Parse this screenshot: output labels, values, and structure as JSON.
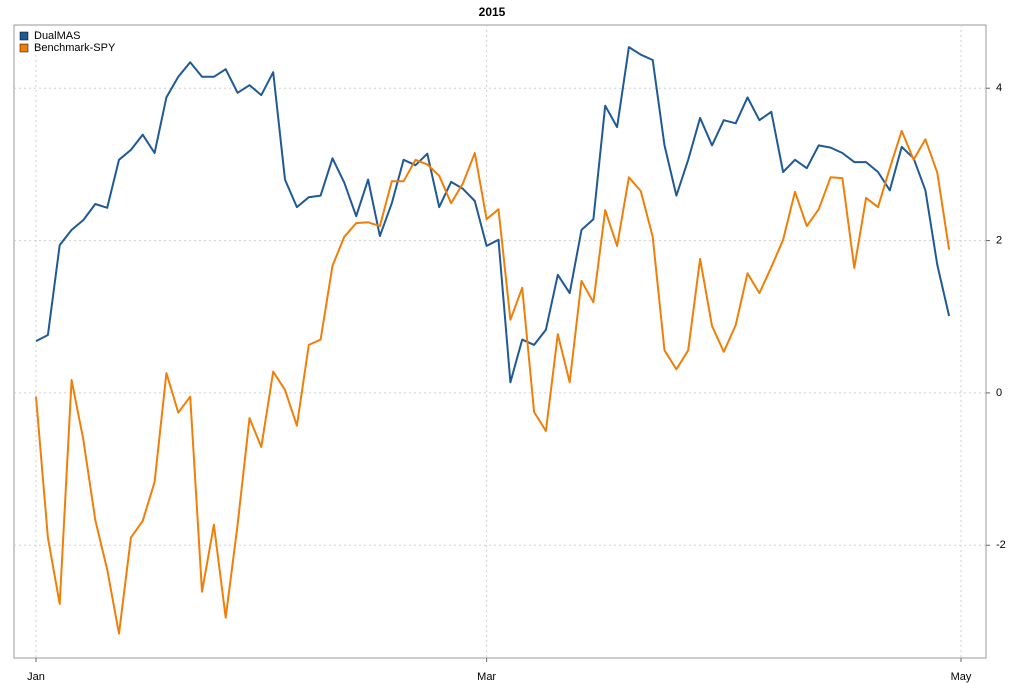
{
  "chart_data": {
    "type": "line",
    "title": "2015",
    "categories": [
      "Jan",
      null,
      null,
      null,
      null,
      null,
      null,
      null,
      null,
      null,
      null,
      null,
      null,
      null,
      null,
      null,
      null,
      null,
      null,
      null,
      null,
      null,
      null,
      null,
      null,
      null,
      null,
      null,
      null,
      null,
      null,
      null,
      null,
      null,
      null,
      null,
      null,
      null,
      "Mar",
      null,
      null,
      null,
      null,
      null,
      null,
      null,
      null,
      null,
      null,
      null,
      null,
      null,
      null,
      null,
      null,
      null,
      null,
      null,
      null,
      null,
      null,
      null,
      null,
      null,
      null,
      null,
      null,
      null,
      null,
      null,
      null,
      null,
      null,
      null,
      null,
      null,
      null,
      null,
      "May"
    ],
    "series": [
      {
        "name": "DualMAS",
        "color": "#1f5a96",
        "values": [
          0.68,
          0.76,
          1.94,
          2.14,
          2.27,
          2.48,
          2.43,
          3.06,
          3.19,
          3.39,
          3.15,
          3.88,
          4.15,
          4.34,
          4.15,
          4.15,
          4.25,
          3.94,
          4.04,
          3.91,
          4.21,
          2.8,
          2.44,
          2.57,
          2.59,
          3.08,
          2.76,
          2.32,
          2.8,
          2.06,
          2.49,
          3.06,
          2.99,
          3.14,
          2.44,
          2.77,
          2.68,
          2.52,
          1.93,
          2.01,
          0.14,
          0.7,
          0.63,
          0.83,
          1.55,
          1.31,
          2.14,
          2.28,
          3.77,
          3.49,
          4.54,
          4.44,
          4.37,
          3.25,
          2.59,
          3.06,
          3.61,
          3.25,
          3.58,
          3.54,
          3.88,
          3.58,
          3.69,
          2.9,
          3.06,
          2.95,
          3.25,
          3.22,
          3.15,
          3.03,
          3.03,
          2.9,
          2.66,
          3.23,
          3.08,
          2.66,
          1.68,
          1.01,
          null
        ]
      },
      {
        "name": "Benchmark-SPY",
        "color": "#f07f09",
        "values": [
          -0.05,
          -1.9,
          -2.77,
          0.17,
          -0.62,
          -1.67,
          -2.32,
          -3.16,
          -1.9,
          -1.68,
          -1.17,
          0.26,
          -0.26,
          -0.05,
          -2.61,
          -1.73,
          -2.95,
          -1.73,
          -0.33,
          -0.71,
          0.28,
          0.04,
          -0.43,
          0.63,
          0.7,
          1.67,
          2.05,
          2.23,
          2.24,
          2.19,
          2.78,
          2.78,
          3.06,
          3.0,
          2.85,
          2.49,
          2.75,
          3.15,
          2.28,
          2.41,
          0.96,
          1.38,
          -0.25,
          -0.5,
          0.77,
          0.14,
          1.47,
          1.19,
          2.4,
          1.93,
          2.83,
          2.65,
          2.05,
          0.56,
          0.31,
          0.56,
          1.76,
          0.88,
          0.54,
          0.89,
          1.57,
          1.31,
          1.65,
          2.01,
          2.64,
          2.19,
          2.41,
          2.83,
          2.82,
          1.64,
          2.56,
          2.44,
          2.95,
          3.44,
          3.06,
          3.33,
          2.89,
          1.88,
          null
        ]
      }
    ],
    "ylim": [
      -3.48,
      4.83
    ],
    "yticks": [
      -2,
      0,
      2,
      4
    ],
    "grid": true,
    "legend": "top-left"
  }
}
